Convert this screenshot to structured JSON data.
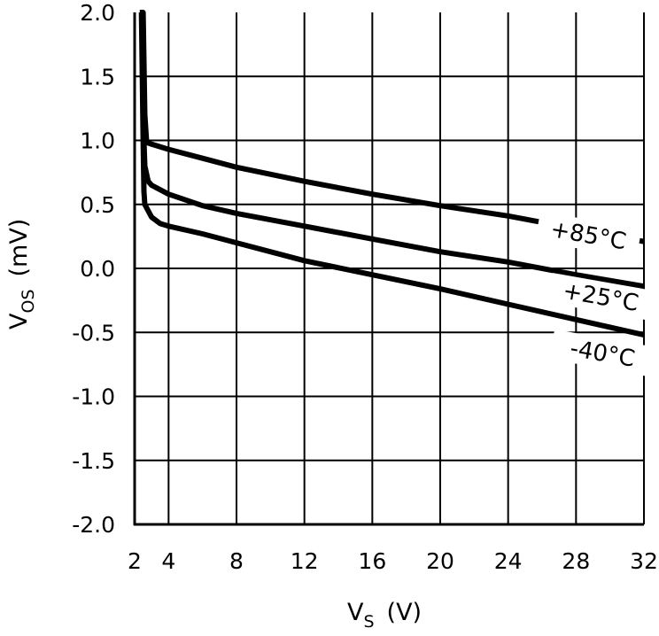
{
  "chart_data": {
    "type": "line",
    "xlabel": {
      "main": "V",
      "sub": "S",
      "unit": "(V)"
    },
    "ylabel": {
      "main": "V",
      "sub": "OS",
      "unit": "(mV)"
    },
    "xlim": [
      2,
      32
    ],
    "ylim": [
      -2.0,
      2.0
    ],
    "x_ticks": [
      2,
      4,
      8,
      12,
      16,
      20,
      24,
      28,
      32
    ],
    "x_tick_labels": [
      "2",
      "4",
      "8",
      "12",
      "16",
      "20",
      "24",
      "28",
      "32"
    ],
    "y_ticks": [
      2.0,
      1.5,
      1.0,
      0.5,
      0.0,
      -0.5,
      -1.0,
      -1.5,
      -2.0
    ],
    "y_tick_labels": [
      "2.0",
      "1.5",
      "1.0",
      "0.5",
      "0.0",
      "-0.5",
      "-1.0",
      "-1.5",
      "-2.0"
    ],
    "grid": true,
    "series": [
      {
        "name": "+85°C",
        "x": [
          2.3,
          2.5,
          2.6,
          2.7,
          2.8,
          3,
          4,
          6,
          8,
          12,
          16,
          20,
          24,
          28,
          32
        ],
        "y": [
          2.0,
          2.0,
          1.2,
          1.0,
          0.98,
          0.97,
          0.93,
          0.86,
          0.79,
          0.68,
          0.58,
          0.49,
          0.41,
          0.31,
          0.21
        ]
      },
      {
        "name": "+25°C",
        "x": [
          2.45,
          2.5,
          2.55,
          2.6,
          2.8,
          3,
          4,
          6,
          8,
          12,
          16,
          20,
          24,
          28,
          32
        ],
        "y": [
          2.0,
          1.5,
          1.0,
          0.8,
          0.68,
          0.65,
          0.58,
          0.49,
          0.43,
          0.33,
          0.23,
          0.13,
          0.05,
          -0.05,
          -0.14
        ]
      },
      {
        "name": "-40°C",
        "x": [
          2.4,
          2.5,
          2.55,
          2.6,
          2.8,
          3,
          3.5,
          4,
          6,
          8,
          12,
          16,
          20,
          24,
          28,
          32
        ],
        "y": [
          2.0,
          1.0,
          0.6,
          0.5,
          0.45,
          0.4,
          0.35,
          0.33,
          0.27,
          0.2,
          0.06,
          -0.05,
          -0.16,
          -0.28,
          -0.4,
          -0.52
        ]
      }
    ],
    "label_positions": [
      "right-top",
      "right-middle",
      "right-bottom"
    ]
  }
}
